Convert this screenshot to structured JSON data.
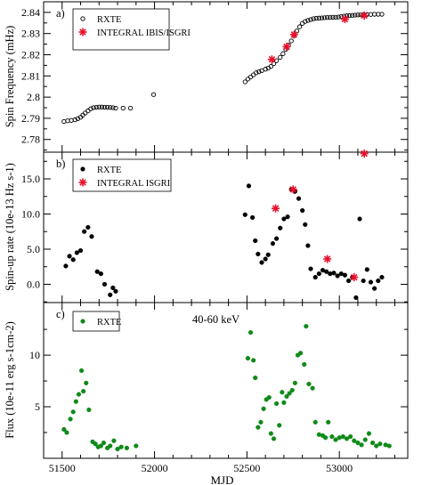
{
  "chart_data": [
    {
      "type": "scatter",
      "panel_tag": "a)",
      "ylabel": "Spin Frequency  (mHz)",
      "xlim": [
        51400,
        53370
      ],
      "ylim": [
        2.774,
        2.845
      ],
      "y_ticks": [
        2.78,
        2.79,
        2.8,
        2.81,
        2.82,
        2.83,
        2.84
      ],
      "y_tick_labels": [
        "2.78",
        "2.79",
        "2.8",
        "2.81",
        "2.82",
        "2.83",
        "2.84"
      ],
      "series": [
        {
          "name": "RXTE",
          "marker": "open-circle",
          "color": "#000000",
          "x": [
            51510,
            51530,
            51550,
            51570,
            51585,
            51600,
            51612,
            51625,
            51640,
            51655,
            51670,
            51685,
            51700,
            51715,
            51730,
            51745,
            51760,
            51775,
            51790,
            51830,
            51870,
            51995,
            52490,
            52505,
            52520,
            52535,
            52550,
            52565,
            52580,
            52600,
            52615,
            52630,
            52645,
            52660,
            52680,
            52695,
            52710,
            52725,
            52740,
            52755,
            52770,
            52785,
            52800,
            52815,
            52830,
            52845,
            52860,
            52875,
            52890,
            52905,
            52920,
            52935,
            52950,
            52965,
            52980,
            52995,
            53010,
            53025,
            53040,
            53055,
            53070,
            53085,
            53100,
            53115,
            53130,
            53150,
            53170,
            53190,
            53210,
            53230
          ],
          "y": [
            2.7885,
            2.7888,
            2.789,
            2.7893,
            2.7898,
            2.7905,
            2.7915,
            2.7925,
            2.7935,
            2.7945,
            2.795,
            2.7952,
            2.7953,
            2.7953,
            2.7952,
            2.7952,
            2.7951,
            2.795,
            2.7948,
            2.7948,
            2.7948,
            2.8012,
            2.8072,
            2.8085,
            2.8095,
            2.8105,
            2.8115,
            2.812,
            2.8125,
            2.8132,
            2.8137,
            2.8145,
            2.8158,
            2.8172,
            2.8188,
            2.8205,
            2.8225,
            2.8245,
            2.8265,
            2.829,
            2.8312,
            2.8332,
            2.8348,
            2.8357,
            2.8362,
            2.8366,
            2.837,
            2.8372,
            2.8373,
            2.8374,
            2.8375,
            2.8376,
            2.8376,
            2.8377,
            2.8377,
            2.8378,
            2.838,
            2.8382,
            2.8384,
            2.8385,
            2.8386,
            2.8387,
            2.8388,
            2.8388,
            2.8389,
            2.839,
            2.839,
            2.8391,
            2.8391,
            2.8391
          ]
        },
        {
          "name": "INTEGRAL IBIS/ISGRI",
          "marker": "red-asterisk",
          "color": "#e8102a",
          "x": [
            52635,
            52715,
            52755,
            53030,
            53135
          ],
          "y": [
            2.8178,
            2.8238,
            2.8295,
            2.8368,
            2.8385
          ]
        }
      ]
    },
    {
      "type": "scatter",
      "panel_tag": "b)",
      "ylabel": "Spin-up rate (10e-13 Hz s-1)",
      "xlim": [
        51400,
        53370
      ],
      "ylim": [
        -2.6,
        18.8
      ],
      "y_ticks": [
        0,
        5,
        10,
        15
      ],
      "y_tick_labels": [
        "0.0",
        "5.0",
        "10.0",
        "15.0"
      ],
      "series": [
        {
          "name": "RXTE",
          "marker": "filled-circle",
          "color": "#000000",
          "x": [
            51520,
            51540,
            51560,
            51580,
            51600,
            51620,
            51640,
            51660,
            51690,
            51710,
            51730,
            51760,
            51775,
            51790,
            52490,
            52510,
            52530,
            52545,
            52560,
            52580,
            52600,
            52615,
            52640,
            52660,
            52680,
            52700,
            52720,
            52740,
            52760,
            52780,
            52800,
            52815,
            52830,
            52845,
            52870,
            52890,
            52910,
            52930,
            52950,
            52970,
            52990,
            53010,
            53030,
            53050,
            53070,
            53090,
            53110,
            53130,
            53150,
            53170,
            53190,
            53210,
            53230
          ],
          "y": [
            2.6,
            4.0,
            3.5,
            4.5,
            4.8,
            7.5,
            8.1,
            6.8,
            1.8,
            1.5,
            0.0,
            -1.5,
            -0.5,
            -1.0,
            9.9,
            14.0,
            9.5,
            6.2,
            4.3,
            3.1,
            3.6,
            4.2,
            5.8,
            6.5,
            8.0,
            9.3,
            9.6,
            13.5,
            13.2,
            12.2,
            10.5,
            8.5,
            5.5,
            2.2,
            1.0,
            1.5,
            2.0,
            1.8,
            1.5,
            1.6,
            1.2,
            1.5,
            1.3,
            0.5,
            1.0,
            -1.9,
            9.3,
            0.5,
            2.1,
            0.3,
            -0.6,
            0.5,
            1.0
          ]
        },
        {
          "name": "INTEGRAL ISGRI",
          "marker": "red-asterisk",
          "color": "#e8102a",
          "x": [
            52655,
            52750,
            52935,
            53080,
            53135
          ],
          "y": [
            10.8,
            13.5,
            3.6,
            1.0,
            18.6
          ]
        }
      ]
    },
    {
      "type": "scatter",
      "panel_tag": "c)",
      "annotation": "40-60 keV",
      "ylabel": "Flux (10e-11 erg s-1cm-2)",
      "xlabel": "MJD",
      "xlim": [
        51400,
        53370
      ],
      "ylim": [
        0,
        15.1
      ],
      "y_ticks": [
        5,
        10
      ],
      "y_tick_labels": [
        "5",
        "10"
      ],
      "x_ticks": [
        51500,
        52000,
        52500,
        53000
      ],
      "x_tick_labels": [
        "51500",
        "52000",
        "52500",
        "53000"
      ],
      "series": [
        {
          "name": "RXTE",
          "marker": "filled-circle",
          "color": "#0f8a18",
          "x": [
            51510,
            51525,
            51545,
            51560,
            51575,
            51590,
            51605,
            51615,
            51630,
            51645,
            51665,
            51680,
            51695,
            51710,
            51725,
            51745,
            51760,
            51780,
            51800,
            51820,
            51850,
            51900,
            52505,
            52520,
            52535,
            52545,
            52560,
            52575,
            52590,
            52605,
            52620,
            52630,
            52645,
            52660,
            52675,
            52690,
            52700,
            52715,
            52730,
            52745,
            52760,
            52775,
            52790,
            52810,
            52820,
            52835,
            52855,
            52870,
            52890,
            52910,
            52925,
            52940,
            52960,
            52980,
            53000,
            53020,
            53040,
            53060,
            53080,
            53100,
            53120,
            53140,
            53160,
            53180,
            53200,
            53220,
            53250,
            53270
          ],
          "y": [
            2.8,
            2.5,
            3.8,
            4.5,
            5.5,
            6.2,
            8.5,
            6.5,
            7.3,
            4.7,
            1.6,
            1.4,
            1.1,
            1.2,
            1.5,
            1.0,
            1.2,
            1.7,
            0.9,
            1.1,
            1.0,
            1.2,
            9.7,
            12.2,
            9.5,
            7.8,
            3.0,
            3.5,
            4.8,
            5.7,
            5.9,
            2.4,
            1.9,
            5.3,
            3.2,
            6.4,
            5.4,
            6.0,
            6.3,
            6.6,
            7.3,
            10.0,
            10.2,
            9.1,
            12.8,
            7.2,
            6.8,
            3.5,
            2.3,
            2.2,
            2.0,
            3.5,
            2.1,
            1.8,
            2.0,
            2.1,
            1.9,
            2.1,
            1.7,
            1.5,
            1.3,
            1.8,
            2.4,
            1.5,
            1.2,
            1.4,
            1.3,
            1.2
          ]
        }
      ]
    }
  ]
}
